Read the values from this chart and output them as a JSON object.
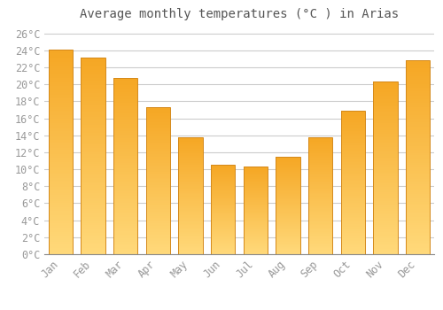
{
  "title": "Average monthly temperatures (°C ) in Arias",
  "months": [
    "Jan",
    "Feb",
    "Mar",
    "Apr",
    "May",
    "Jun",
    "Jul",
    "Aug",
    "Sep",
    "Oct",
    "Nov",
    "Dec"
  ],
  "values": [
    24.1,
    23.1,
    20.7,
    17.3,
    13.8,
    10.5,
    10.3,
    11.5,
    13.8,
    16.9,
    20.3,
    22.8
  ],
  "bar_color_top": "#F5A623",
  "bar_color_bottom": "#FFD97A",
  "bar_edge_color": "#D4891A",
  "background_color": "#FFFFFF",
  "grid_color": "#CCCCCC",
  "text_color": "#999999",
  "title_color": "#555555",
  "ylim": [
    0,
    27
  ],
  "ytick_step": 2,
  "tick_label_suffix": "°C",
  "title_fontsize": 10,
  "tick_fontsize": 8.5,
  "font_family": "monospace"
}
